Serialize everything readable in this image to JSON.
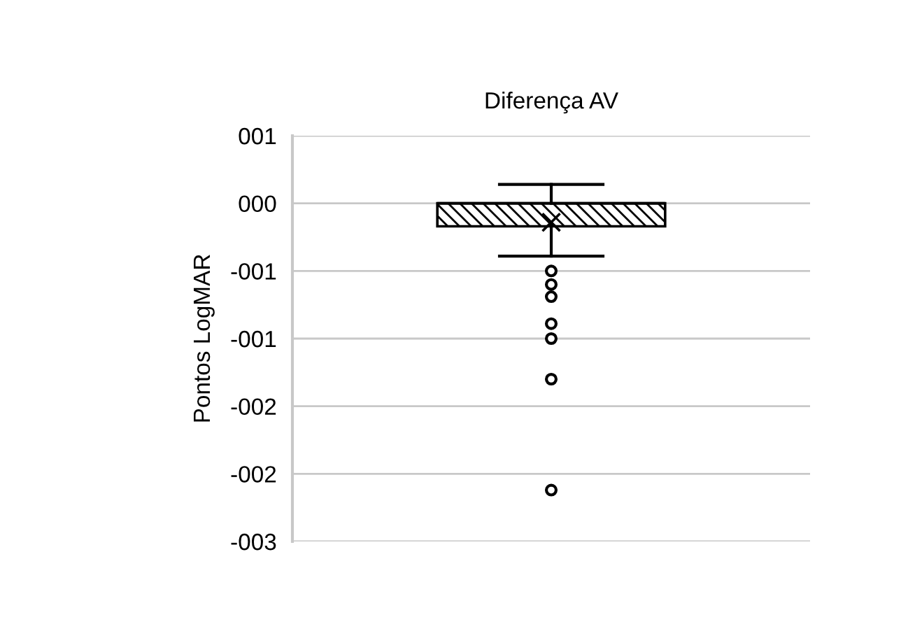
{
  "chart_data": {
    "type": "box",
    "title": "Diferença AV",
    "ylabel": "Pontos LogMAR",
    "categories": [
      null
    ],
    "boxes": [
      {
        "low": -0.39,
        "q1": -0.17,
        "median": 0,
        "q3": 0,
        "high": 0.14,
        "mean": -0.14,
        "outliers": [
          -0.5,
          -0.6,
          -0.69,
          -0.89,
          -1.0,
          -1.3,
          -2.12
        ]
      }
    ],
    "color": "#000000",
    "ylim": [
      -2.5,
      0.5
    ],
    "yticks": [
      {
        "value": 0.5,
        "label": "001"
      },
      {
        "value": 0,
        "label": "000"
      },
      {
        "value": -0.5,
        "label": "-001"
      },
      {
        "value": -1.0,
        "label": "-001"
      },
      {
        "value": -1.5,
        "label": "-002"
      },
      {
        "value": -2.0,
        "label": "-002"
      },
      {
        "value": -2.5,
        "label": "-003"
      }
    ],
    "grid": "y",
    "legend": false
  }
}
